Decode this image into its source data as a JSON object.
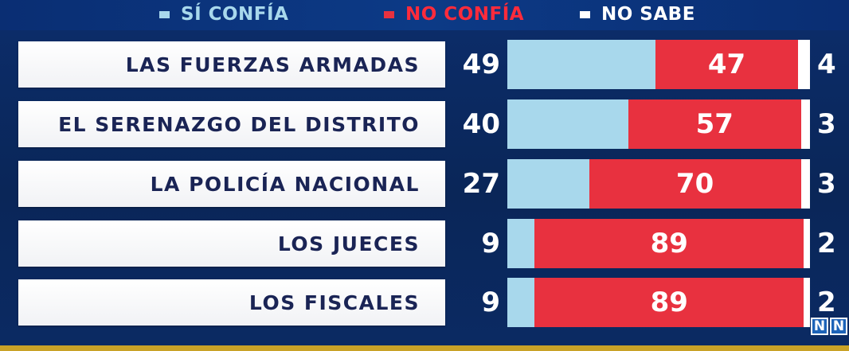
{
  "colors": {
    "si": "#a8d8ec",
    "no": "#e8313f",
    "ns": "#ffffff",
    "legend_si_text": "#a8d8ec",
    "legend_no_text": "#ff2b3b",
    "legend_ns_text": "#ffffff"
  },
  "legend": [
    {
      "label": "SÍ CONFÍA",
      "color_key": "si"
    },
    {
      "label": "NO CONFÍA",
      "color_key": "no"
    },
    {
      "label": "NO SABE",
      "color_key": "ns"
    }
  ],
  "logo": {
    "letters": [
      "N",
      "N"
    ]
  },
  "chart_data": {
    "type": "bar",
    "stacked": true,
    "orientation": "horizontal",
    "categories": [
      "LAS FUERZAS ARMADAS",
      "EL SERENAZGO DEL DISTRITO",
      "LA POLICÍA NACIONAL",
      "LOS JUECES",
      "LOS FISCALES"
    ],
    "series": [
      {
        "name": "SÍ CONFÍA",
        "values": [
          49,
          40,
          27,
          9,
          9
        ]
      },
      {
        "name": "NO CONFÍA",
        "values": [
          47,
          57,
          70,
          89,
          89
        ]
      },
      {
        "name": "NO SABE",
        "values": [
          4,
          3,
          3,
          2,
          2
        ]
      }
    ],
    "value_labels": {
      "si": [
        "49",
        "40",
        "27",
        "9",
        "9"
      ],
      "no": [
        "47",
        "57",
        "70",
        "89",
        "89"
      ],
      "ns": [
        "4",
        "3",
        "3",
        "2",
        "2"
      ]
    },
    "xlim": [
      0,
      100
    ],
    "legend_position": "top"
  }
}
